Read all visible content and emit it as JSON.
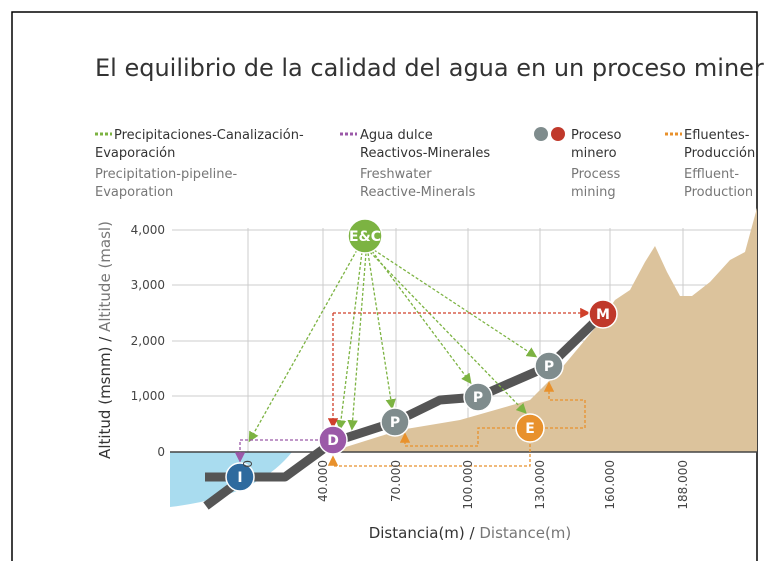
{
  "title": "El equilibrio de la calidad del agua en un proceso minero",
  "legend": [
    {
      "es": [
        "Precipitaciones-Canalización-",
        "Evaporación"
      ],
      "en": [
        "Precipitation-pipeline-",
        "Evaporation"
      ]
    },
    {
      "es": [
        "Agua dulce",
        "Reactivos-Minerales"
      ],
      "en": [
        "Freshwater",
        "Reactive-Minerals"
      ]
    },
    {
      "es": [
        "Proceso",
        "minero"
      ],
      "en": [
        "Process",
        "mining"
      ]
    },
    {
      "es": [
        "Efluentes-",
        "Producción"
      ],
      "en": [
        "Effluent-",
        "Production"
      ]
    }
  ],
  "y_axis": {
    "label_es": "Altitud (msnm)",
    "label_sep": " / ",
    "label_en": "Altitude (masl)",
    "ticks": [
      "4,000",
      "3,000",
      "2,000",
      "1,000",
      "0"
    ]
  },
  "x_axis": {
    "label_es": "Distancia(m)",
    "label_sep": " / ",
    "label_en": "Distance(m)",
    "ticks": [
      "0",
      "40.000",
      "70.000",
      "100.000",
      "130.000",
      "160.000",
      "188.000"
    ]
  },
  "nodes": [
    "I",
    "D",
    "P",
    "P",
    "P",
    "M",
    "E",
    "E&C"
  ]
}
